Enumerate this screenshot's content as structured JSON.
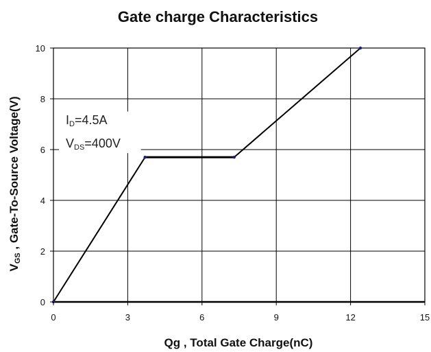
{
  "chart_data": {
    "type": "line",
    "title": "Gate charge Characteristics",
    "xlabel": "Qg , Total Gate Charge(nC)",
    "ylabel": "V",
    "ylabel_sub": "GS",
    "ylabel_rest": " ,  Gate-To-Source Voltage(V)",
    "xlim": [
      0,
      15
    ],
    "ylim": [
      0,
      10
    ],
    "xticks": [
      "0",
      "3",
      "6",
      "9",
      "12",
      "15"
    ],
    "yticks": [
      "0",
      "2",
      "4",
      "6",
      "8",
      "10"
    ],
    "grid": true,
    "series": [
      {
        "x": [
          0,
          3.7,
          7.3,
          12.4
        ],
        "y": [
          0,
          5.7,
          5.7,
          10.0
        ]
      }
    ],
    "annotations": [
      {
        "main": "I",
        "sub": "D",
        "rest": "=4.5A"
      },
      {
        "main": "V",
        "sub": "DS",
        "rest": "=400V"
      }
    ],
    "colors": {
      "line": "#000000",
      "grid": "#000000",
      "marker": "#1a237e"
    }
  }
}
